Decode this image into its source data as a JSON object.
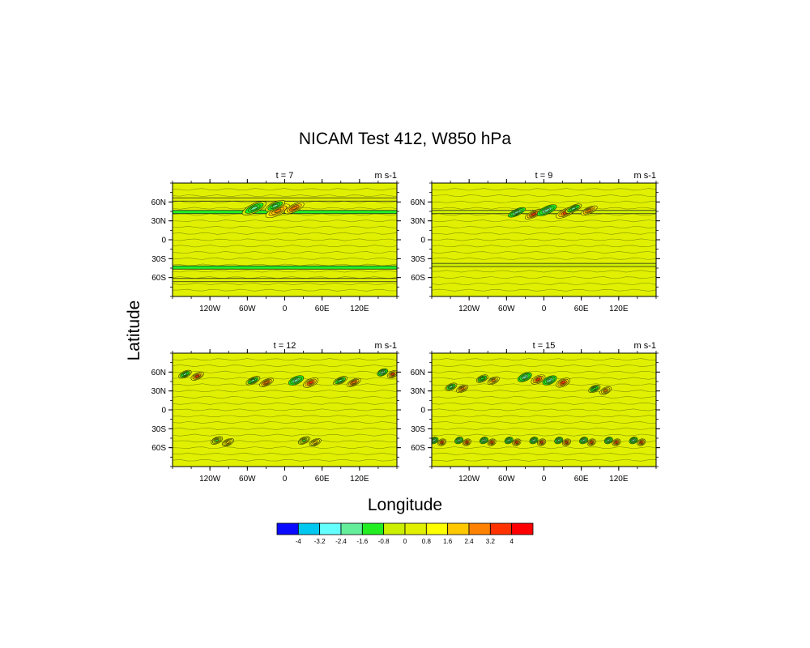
{
  "figure": {
    "title": "NICAM Test 412, W850 hPa",
    "xlabel": "Longitude",
    "ylabel": "Latitude"
  },
  "chart_data": [
    {
      "type": "heatmap",
      "panel_label": "t = 7",
      "units": "m s-1",
      "x_ticks": [
        "120W",
        "60W",
        "0",
        "60E",
        "120E"
      ],
      "y_ticks": [
        "60N",
        "30N",
        "0",
        "30S",
        "60S"
      ],
      "xlim": [
        -180,
        180
      ],
      "ylim": [
        -90,
        90
      ],
      "dominant_value": 0.4,
      "wave_packets": [
        {
          "lon": -30,
          "lat": 48,
          "amp": 2.8,
          "width": 42,
          "height": 14
        },
        {
          "lon": 0,
          "lat": 52,
          "amp": 3.0,
          "width": 34,
          "height": 12
        }
      ],
      "zonal_bands": [
        {
          "lat": 44,
          "value": -1.2
        },
        {
          "lat": -44,
          "value": -1.2
        },
        {
          "lat": 64,
          "value": 0.0
        },
        {
          "lat": -64,
          "value": 0.0
        }
      ]
    },
    {
      "type": "heatmap",
      "panel_label": "t = 9",
      "units": "m s-1",
      "x_ticks": [
        "120W",
        "60W",
        "0",
        "60E",
        "120E"
      ],
      "y_ticks": [
        "60N",
        "30N",
        "0",
        "30S",
        "60S"
      ],
      "xlim": [
        -180,
        180
      ],
      "ylim": [
        -90,
        90
      ],
      "dominant_value": 0.4,
      "wave_packets": [
        {
          "lon": -30,
          "lat": 42,
          "amp": 3.4,
          "width": 30,
          "height": 10
        },
        {
          "lon": 20,
          "lat": 45,
          "amp": 3.6,
          "width": 34,
          "height": 12
        },
        {
          "lon": 60,
          "lat": 48,
          "amp": 2.8,
          "width": 28,
          "height": 10
        }
      ],
      "zonal_bands": [
        {
          "lat": 44,
          "value": -0.8
        },
        {
          "lat": -40,
          "value": -0.8
        }
      ]
    },
    {
      "type": "heatmap",
      "panel_label": "t = 12",
      "units": "m s-1",
      "x_ticks": [
        "120W",
        "60W",
        "0",
        "60E",
        "120E"
      ],
      "y_ticks": [
        "60N",
        "30N",
        "0",
        "30S",
        "60S"
      ],
      "xlim": [
        -180,
        180
      ],
      "ylim": [
        -90,
        90
      ],
      "dominant_value": 0.4,
      "wave_packets": [
        {
          "lon": -150,
          "lat": 55,
          "amp": 3.2,
          "width": 22,
          "height": 10
        },
        {
          "lon": -40,
          "lat": 45,
          "amp": 3.0,
          "width": 24,
          "height": 10
        },
        {
          "lon": 30,
          "lat": 45,
          "amp": 3.6,
          "width": 26,
          "height": 12
        },
        {
          "lon": 100,
          "lat": 45,
          "amp": 3.0,
          "width": 24,
          "height": 10
        },
        {
          "lon": 165,
          "lat": 58,
          "amp": 3.4,
          "width": 18,
          "height": 10
        },
        {
          "lon": -100,
          "lat": -50,
          "amp": 1.6,
          "width": 20,
          "height": 10
        },
        {
          "lon": 40,
          "lat": -50,
          "amp": 1.6,
          "width": 20,
          "height": 10
        }
      ],
      "zonal_bands": []
    },
    {
      "type": "heatmap",
      "panel_label": "t = 15",
      "units": "m s-1",
      "x_ticks": [
        "120W",
        "60W",
        "0",
        "60E",
        "120E"
      ],
      "y_ticks": [
        "60N",
        "30N",
        "0",
        "30S",
        "60S"
      ],
      "xlim": [
        -180,
        180
      ],
      "ylim": [
        -90,
        90
      ],
      "dominant_value": 0.4,
      "wave_packets": [
        {
          "lon": -140,
          "lat": 35,
          "amp": 2.8,
          "width": 20,
          "height": 10
        },
        {
          "lon": -90,
          "lat": 48,
          "amp": 2.6,
          "width": 20,
          "height": 10
        },
        {
          "lon": -20,
          "lat": 50,
          "amp": 3.4,
          "width": 24,
          "height": 12
        },
        {
          "lon": 20,
          "lat": 45,
          "amp": 3.6,
          "width": 24,
          "height": 12
        },
        {
          "lon": 90,
          "lat": 32,
          "amp": 2.6,
          "width": 20,
          "height": 10
        },
        {
          "lon": -170,
          "lat": -50,
          "amp": 3.4,
          "width": 14,
          "height": 10
        },
        {
          "lon": -130,
          "lat": -50,
          "amp": 3.6,
          "width": 14,
          "height": 10
        },
        {
          "lon": -90,
          "lat": -50,
          "amp": 3.6,
          "width": 14,
          "height": 10
        },
        {
          "lon": -50,
          "lat": -50,
          "amp": 3.4,
          "width": 14,
          "height": 10
        },
        {
          "lon": -10,
          "lat": -50,
          "amp": 3.6,
          "width": 14,
          "height": 10
        },
        {
          "lon": 30,
          "lat": -50,
          "amp": 3.4,
          "width": 14,
          "height": 10
        },
        {
          "lon": 70,
          "lat": -50,
          "amp": 3.6,
          "width": 14,
          "height": 10
        },
        {
          "lon": 110,
          "lat": -50,
          "amp": 3.4,
          "width": 14,
          "height": 10
        },
        {
          "lon": 150,
          "lat": -50,
          "amp": 3.6,
          "width": 14,
          "height": 10
        }
      ],
      "zonal_bands": []
    }
  ],
  "colorbar": {
    "labels": [
      "-4",
      "-3.2",
      "-2.4",
      "-1.6",
      "-0.8",
      "0",
      "0.8",
      "1.6",
      "2.4",
      "3.2",
      "4"
    ],
    "colors": [
      "#0a0aff",
      "#00c8f0",
      "#64ffff",
      "#64ee9b",
      "#22ee22",
      "#ccee00",
      "#e1f000",
      "#ffff00",
      "#ffc800",
      "#ff8200",
      "#ff3200",
      "#ff0000"
    ]
  }
}
